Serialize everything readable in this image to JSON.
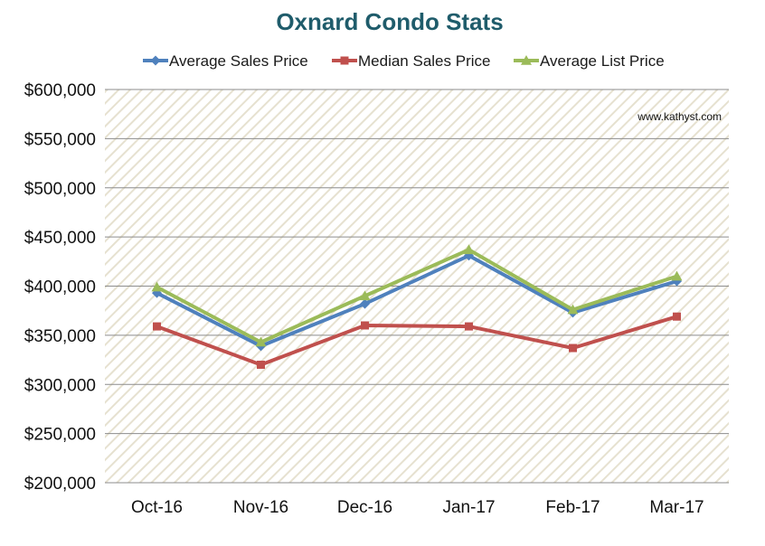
{
  "chart_data": {
    "type": "line",
    "title": "Oxnard Condo Stats",
    "watermark": "www.kathyst.com",
    "categories": [
      "Oct-16",
      "Nov-16",
      "Dec-16",
      "Jan-17",
      "Feb-17",
      "Mar-17"
    ],
    "y_tick_labels": [
      "$600,000",
      "$550,000",
      "$500,000",
      "$450,000",
      "$400,000",
      "$350,000",
      "$300,000",
      "$250,000",
      "$200,000"
    ],
    "y_ticks": [
      600000,
      550000,
      500000,
      450000,
      400000,
      350000,
      300000,
      250000,
      200000
    ],
    "ylim": [
      200000,
      600000
    ],
    "grid": true,
    "legend_position": "top",
    "series": [
      {
        "name": "Average Sales Price",
        "color": "#4F81BD",
        "marker": "diamond",
        "values": [
          393000,
          339000,
          382000,
          431000,
          373000,
          405000
        ]
      },
      {
        "name": "Median Sales Price",
        "color": "#C0504D",
        "marker": "square",
        "values": [
          359000,
          320000,
          360000,
          359000,
          337000,
          369000
        ]
      },
      {
        "name": "Average List Price",
        "color": "#9BBB59",
        "marker": "triangle",
        "values": [
          399000,
          343000,
          390000,
          437000,
          376000,
          410000
        ]
      }
    ],
    "colors": {
      "title": "#1F5C6B",
      "gridline": "#8c8c8c",
      "plot_stripe": "#e6e1d0"
    }
  }
}
